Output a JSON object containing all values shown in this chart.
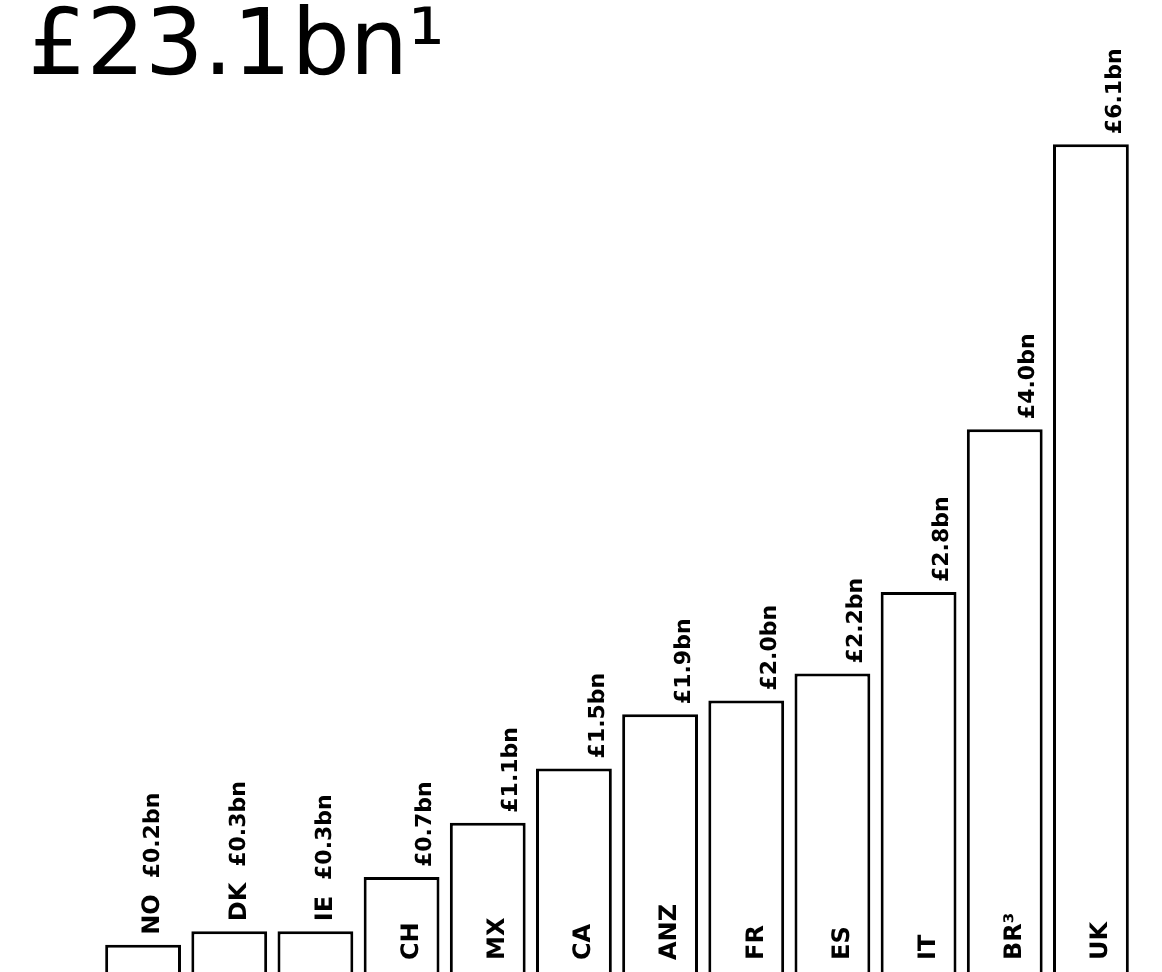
{
  "chart_data": {
    "type": "bar",
    "title": "£23.1bn¹",
    "categories": [
      "NO",
      "DK",
      "IE",
      "CH",
      "MX",
      "CA",
      "ANZ",
      "FR",
      "ES",
      "IT",
      "BR³",
      "UK"
    ],
    "values": [
      0.2,
      0.3,
      0.3,
      0.7,
      1.1,
      1.5,
      1.9,
      2.0,
      2.2,
      2.8,
      4.0,
      6.1
    ],
    "value_labels": [
      "£0.2bn",
      "£0.3bn",
      "£0.3bn",
      "£0.7bn",
      "£1.1bn",
      "£1.5bn",
      "£1.9bn",
      "£2.0bn",
      "£2.2bn",
      "£2.8bn",
      "£4.0bn",
      "£6.1bn"
    ],
    "color": "#ffffff"
  }
}
